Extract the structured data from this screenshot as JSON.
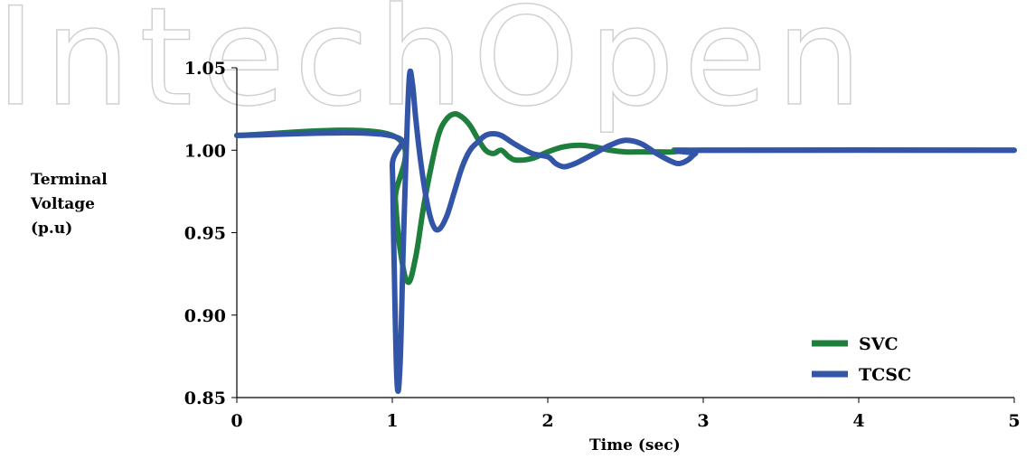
{
  "watermark": "IntechOpen",
  "chart_data": {
    "type": "line",
    "title": "",
    "xlabel": "Time (sec)",
    "ylabel_lines": [
      "Terminal",
      "Voltage",
      "(p.u)"
    ],
    "xlim": [
      0,
      5
    ],
    "ylim": [
      0.85,
      1.05
    ],
    "xticks": [
      "0",
      "1",
      "2",
      "3",
      "4",
      "5"
    ],
    "xtick_values": [
      0,
      1,
      2,
      3,
      4,
      5
    ],
    "yticks": [
      "1.05",
      "1.00",
      "0.95",
      "0.90",
      "0.85"
    ],
    "ytick_values": [
      1.05,
      1.0,
      0.95,
      0.9,
      0.85
    ],
    "grid": false,
    "legend_position": "bottom-right",
    "series": [
      {
        "name": "SVC",
        "color": "#1e7f3c",
        "x": [
          0,
          1.0,
          1.02,
          1.05,
          1.1,
          1.15,
          1.2,
          1.25,
          1.3,
          1.35,
          1.4,
          1.45,
          1.5,
          1.55,
          1.6,
          1.65,
          1.7,
          1.75,
          1.8,
          1.9,
          2.0,
          2.1,
          2.2,
          2.3,
          2.4,
          2.5,
          2.6,
          2.7,
          2.8,
          2.9,
          3.0,
          5.0
        ],
        "y": [
          1.009,
          1.009,
          0.97,
          0.94,
          0.92,
          0.935,
          0.965,
          0.99,
          1.01,
          1.019,
          1.022,
          1.02,
          1.015,
          1.007,
          1.0,
          0.998,
          1.0,
          0.996,
          0.994,
          0.995,
          0.999,
          1.002,
          1.003,
          1.002,
          1.0,
          0.999,
          0.999,
          0.999,
          0.999,
          1.0,
          1.0,
          1.0
        ]
      },
      {
        "name": "TCSC",
        "color": "#3355a8",
        "x": [
          0,
          0.98,
          1.0,
          1.01,
          1.03,
          1.05,
          1.07,
          1.09,
          1.11,
          1.13,
          1.15,
          1.18,
          1.22,
          1.26,
          1.3,
          1.35,
          1.4,
          1.45,
          1.5,
          1.55,
          1.6,
          1.65,
          1.7,
          1.75,
          1.8,
          1.9,
          2.0,
          2.05,
          2.1,
          2.15,
          2.2,
          2.3,
          2.4,
          2.5,
          2.6,
          2.7,
          2.8,
          2.85,
          2.9,
          2.95,
          3.0,
          5.0
        ],
        "y": [
          1.009,
          1.009,
          0.99,
          0.94,
          0.86,
          0.87,
          0.94,
          1.0,
          1.045,
          1.04,
          1.02,
          0.995,
          0.97,
          0.955,
          0.952,
          0.96,
          0.975,
          0.99,
          1.0,
          1.005,
          1.009,
          1.01,
          1.009,
          1.006,
          1.003,
          0.998,
          0.996,
          0.992,
          0.99,
          0.991,
          0.993,
          0.998,
          1.003,
          1.006,
          1.004,
          0.998,
          0.993,
          0.992,
          0.994,
          0.998,
          1.0,
          1.0
        ]
      }
    ]
  }
}
